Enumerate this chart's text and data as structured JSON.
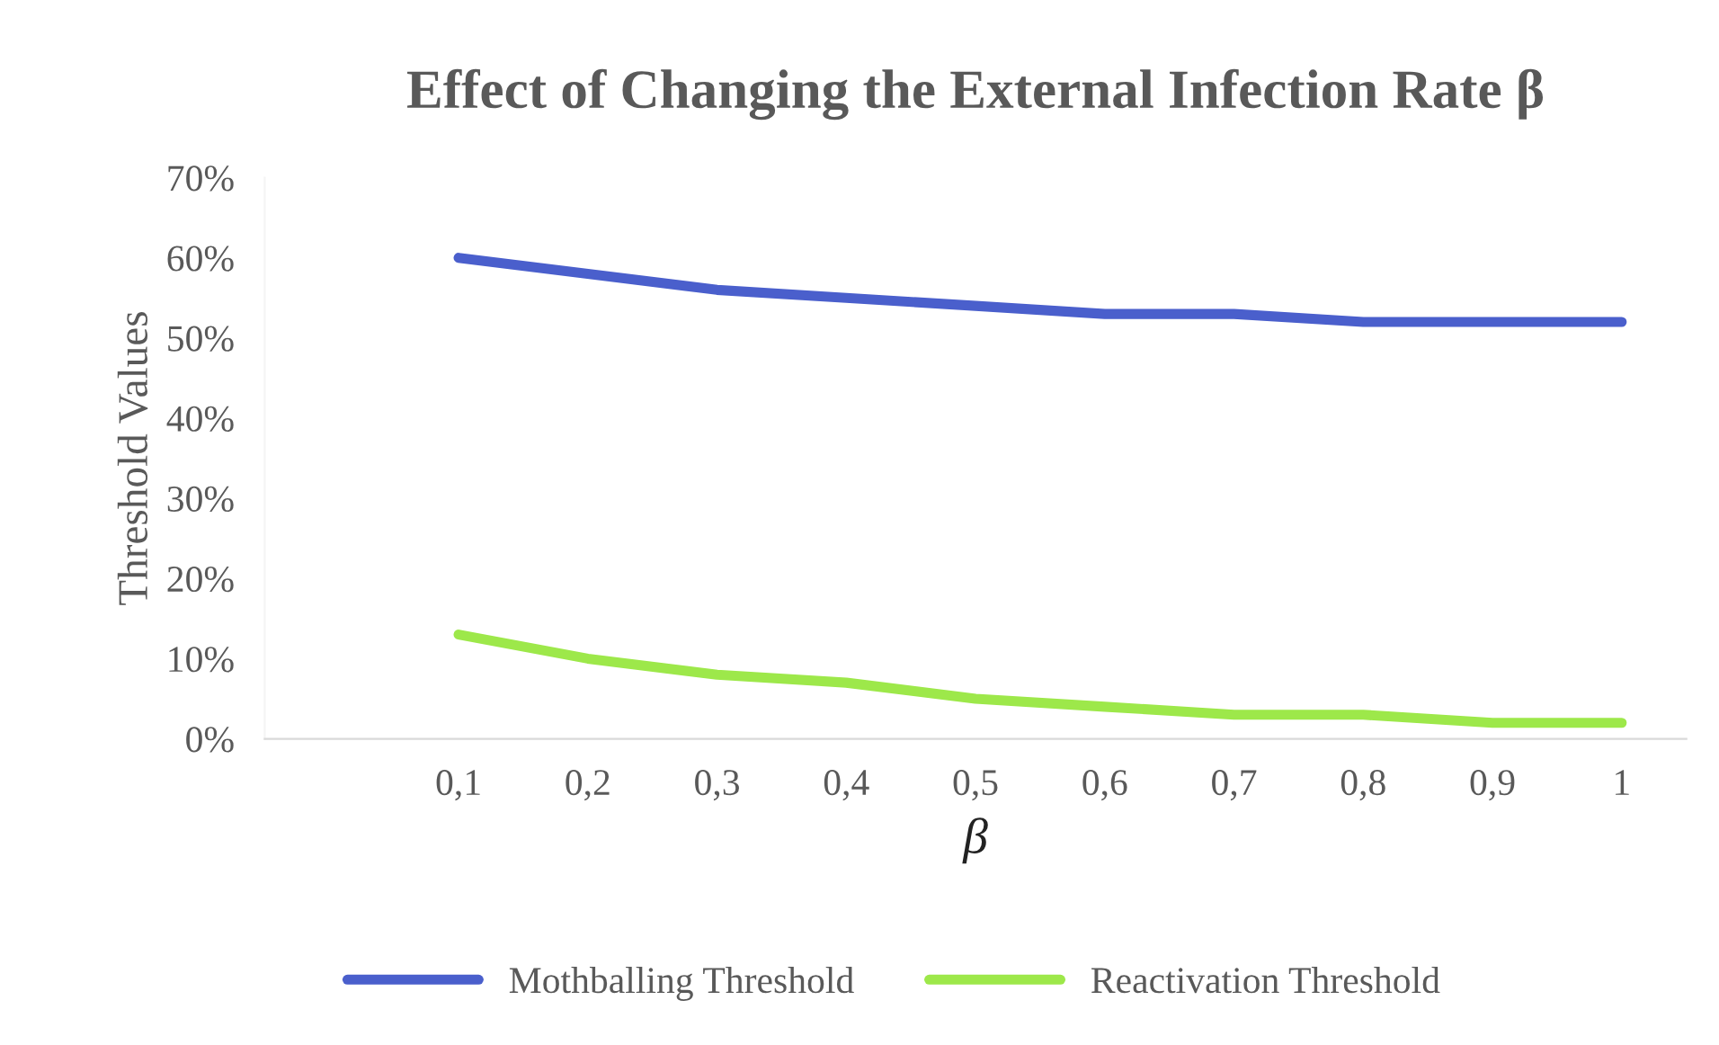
{
  "chart_data": {
    "type": "line",
    "title": "Effect of Changing the External Infection Rate β",
    "xlabel": "β",
    "ylabel": "Threshold Values",
    "categories": [
      null,
      "0,1",
      "0,2",
      "0,3",
      "0,4",
      "0,5",
      "0,6",
      "0,7",
      "0,8",
      "0,9",
      "1"
    ],
    "series": [
      {
        "name": "Mothballing Threshold",
        "color": "#4a5fcc",
        "values": [
          null,
          60,
          58,
          56,
          55,
          54,
          53,
          53,
          52,
          52,
          52
        ]
      },
      {
        "name": "Reactivation Threshold",
        "color": "#9de84a",
        "values": [
          null,
          13,
          10,
          8,
          7,
          5,
          4,
          3,
          3,
          2,
          2
        ]
      }
    ],
    "ylim": [
      0,
      70
    ],
    "yticks": [
      {
        "value": 0,
        "label": "0%"
      },
      {
        "value": 10,
        "label": "10%"
      },
      {
        "value": 20,
        "label": "20%"
      },
      {
        "value": 30,
        "label": "30%"
      },
      {
        "value": 40,
        "label": "40%"
      },
      {
        "value": 50,
        "label": "50%"
      },
      {
        "value": 60,
        "label": "60%"
      },
      {
        "value": 70,
        "label": "70%"
      }
    ],
    "grid": false,
    "legend": "bottom",
    "marker": "none",
    "line_style": "solid"
  }
}
